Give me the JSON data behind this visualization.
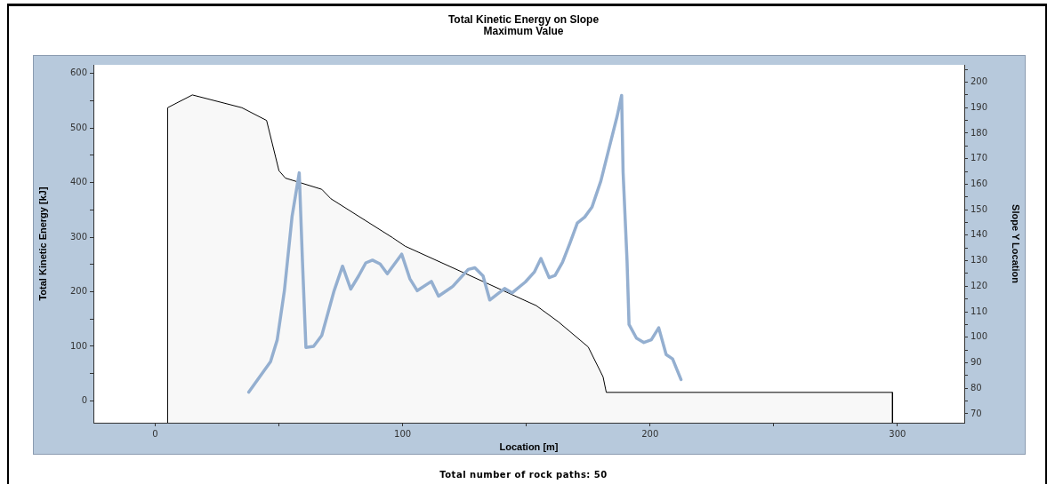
{
  "chart_data": {
    "type": "line",
    "title": "Total Kinetic Energy on Slope",
    "subtitle": "Maximum Value",
    "xlabel": "Location [m]",
    "ylabel": "Total Kinetic Energy [kJ]",
    "y2label": "Slope Y Location",
    "annotations": [
      "Total number of rock paths:  50"
    ],
    "xlim": [
      -25,
      327
    ],
    "xticks": [
      0,
      {
        "value": 50,
        "label": null
      },
      100,
      {
        "value": 150,
        "label": null
      },
      200,
      {
        "value": 250,
        "label": null
      },
      300
    ],
    "ylim": [
      -40,
      616
    ],
    "yticks": [
      0,
      {
        "value": 50,
        "label": null
      },
      100,
      {
        "value": 150,
        "label": null
      },
      200,
      {
        "value": 250,
        "label": null
      },
      300,
      {
        "value": 350,
        "label": null
      },
      400,
      {
        "value": 450,
        "label": null
      },
      500,
      {
        "value": 550,
        "label": null
      },
      600
    ],
    "y2lim": [
      66.5,
      206.8
    ],
    "y2ticks": [
      70,
      {
        "value": 75,
        "label": null
      },
      80,
      {
        "value": 85,
        "label": null
      },
      90,
      {
        "value": 95,
        "label": null
      },
      100,
      {
        "value": 105,
        "label": null
      },
      110,
      {
        "value": 115,
        "label": null
      },
      120,
      {
        "value": 125,
        "label": null
      },
      130,
      {
        "value": 135,
        "label": null
      },
      140,
      {
        "value": 145,
        "label": null
      },
      150,
      {
        "value": 155,
        "label": null
      },
      160,
      {
        "value": 165,
        "label": null
      },
      170,
      {
        "value": 175,
        "label": null
      },
      180,
      {
        "value": 185,
        "label": null
      },
      190,
      {
        "value": 195,
        "label": null
      },
      200,
      {
        "value": 205,
        "label": null
      }
    ],
    "legend": false,
    "marker": "none",
    "series": [
      {
        "type": "area",
        "axis": "y2",
        "color": "#000000",
        "x": [
          5,
          5,
          15,
          35,
          45,
          50,
          52.6,
          67.3,
          71,
          96,
          101,
          154,
          163,
          175,
          181,
          182.3,
          298,
          298
        ],
        "values": [
          66.5,
          190,
          195,
          190,
          185,
          165.3,
          162.4,
          158,
          154.3,
          139,
          135.7,
          112.4,
          106,
          96.2,
          84.5,
          78.4,
          78.4,
          66.5
        ]
      },
      {
        "type": "line",
        "color": "#94afd0",
        "x": [
          37.8,
          46.6,
          49.3,
          52.2,
          55.3,
          58.2,
          59.5,
          60.9,
          64,
          67.3,
          72.3,
          75.7,
          79,
          82.2,
          85.1,
          87.8,
          90.9,
          93.8,
          99.6,
          102.9,
          105.9,
          111.6,
          114.5,
          120.3,
          126.5,
          129.2,
          132.5,
          135.2,
          141.2,
          144.2,
          149.6,
          153.2,
          155.9,
          159.2,
          161.6,
          164.6,
          167.6,
          170.6,
          173.6,
          176.5,
          180.1,
          183.7,
          186.7,
          188.5,
          189.1,
          190.7,
          191.5,
          194.5,
          197.5,
          200.5,
          203.5,
          206.5,
          209.1,
          212.5
        ],
        "values": [
          16,
          72,
          112,
          202,
          338,
          418,
          256,
          98,
          100,
          120,
          202,
          247,
          205,
          229,
          253,
          258,
          251,
          233,
          269,
          224,
          202,
          219,
          192,
          210,
          241,
          244,
          229,
          185,
          206,
          198,
          218,
          236,
          261,
          226,
          230,
          254,
          289,
          326,
          337,
          355,
          403,
          468,
          522,
          560,
          419,
          256,
          140,
          115,
          107,
          112,
          134,
          85,
          77,
          39
        ]
      }
    ]
  }
}
